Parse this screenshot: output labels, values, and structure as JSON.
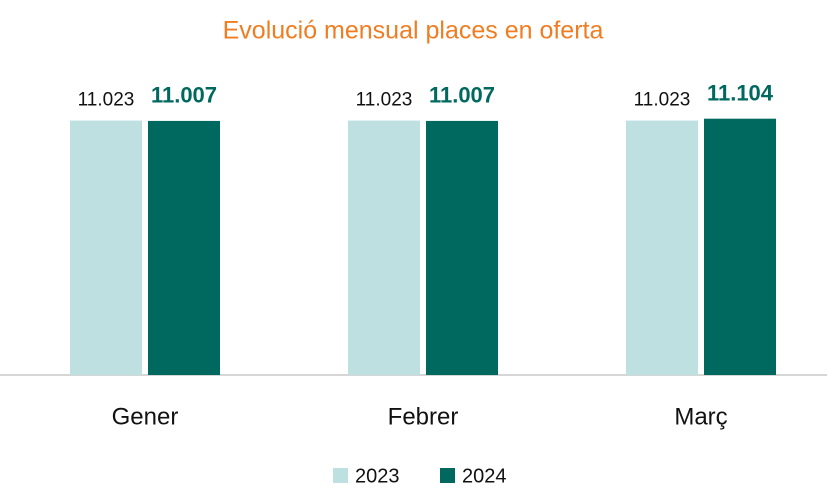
{
  "chart_data": {
    "type": "bar",
    "title": "Evolució mensual places en oferta",
    "categories": [
      "Gener",
      "Febrer",
      "Març"
    ],
    "series": [
      {
        "name": "2023",
        "color": "#bfe0e0",
        "values": [
          11023,
          11023,
          11023
        ],
        "value_labels": [
          "11.023",
          "11.023",
          "11.023"
        ]
      },
      {
        "name": "2024",
        "color": "#00695f",
        "values": [
          11007,
          11007,
          11104
        ],
        "value_labels": [
          "11.007",
          "11.007",
          "11.104"
        ]
      }
    ],
    "ylim": [
      0,
      12000
    ]
  }
}
